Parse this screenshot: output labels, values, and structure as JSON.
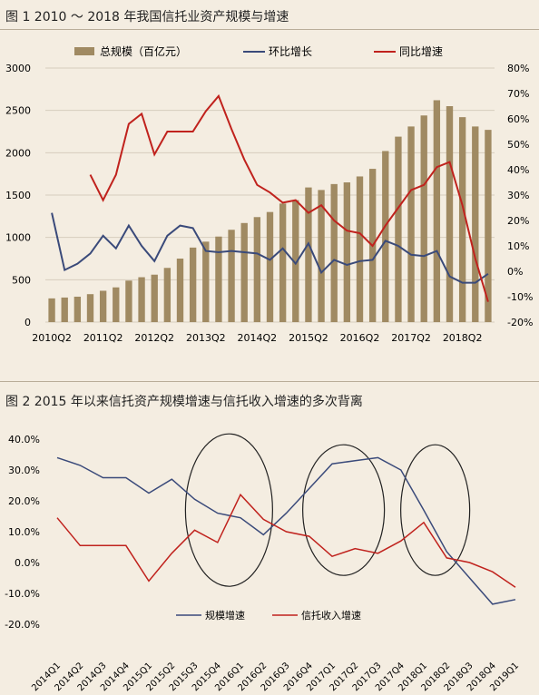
{
  "figure1": {
    "title": "图 1    2010 ～ 2018 年我国信托业资产规模与增速",
    "legend": {
      "bar": "总规模（百亿元）",
      "qoq": "环比增长",
      "yoy": "同比增速"
    },
    "left_ticks": [
      "0",
      "500",
      "1000",
      "1500",
      "2000",
      "2500",
      "3000"
    ],
    "right_ticks": [
      "-20%",
      "-10%",
      "0%",
      "10%",
      "20%",
      "30%",
      "40%",
      "50%",
      "60%",
      "70%",
      "80%"
    ],
    "x_labels": [
      "2010Q2",
      "2011Q2",
      "2012Q2",
      "2013Q2",
      "2014Q2",
      "2015Q2",
      "2016Q2",
      "2017Q2",
      "2018Q2"
    ]
  },
  "figure2": {
    "title": "图 2   2015 年以来信托资产规模增速与信托收入增速的多次背离",
    "y_ticks": [
      "-20.0%",
      "-10.0%",
      "0.0%",
      "10.0%",
      "20.0%",
      "30.0%",
      "40.0%"
    ],
    "legend": {
      "scale": "规模增速",
      "income": "信托收入增速"
    }
  },
  "chart_data": [
    {
      "type": "bar",
      "title": "图 1    2010 ～ 2018 年我国信托业资产规模与增速",
      "categories": [
        "2010Q2",
        "2010Q3",
        "2010Q4",
        "2011Q1",
        "2011Q2",
        "2011Q3",
        "2011Q4",
        "2012Q1",
        "2012Q2",
        "2012Q3",
        "2012Q4",
        "2013Q1",
        "2013Q2",
        "2013Q3",
        "2013Q4",
        "2014Q1",
        "2014Q2",
        "2014Q3",
        "2014Q4",
        "2015Q1",
        "2015Q2",
        "2015Q3",
        "2015Q4",
        "2016Q1",
        "2016Q2",
        "2016Q3",
        "2016Q4",
        "2017Q1",
        "2017Q2",
        "2017Q3",
        "2017Q4",
        "2018Q1",
        "2018Q2",
        "2018Q3",
        "2018Q4"
      ],
      "series": [
        {
          "name": "总规模（百亿元）",
          "axis": "left",
          "values": [
            280,
            290,
            300,
            330,
            370,
            410,
            490,
            530,
            560,
            640,
            750,
            880,
            950,
            1010,
            1090,
            1170,
            1240,
            1300,
            1400,
            1440,
            1590,
            1560,
            1630,
            1650,
            1720,
            1810,
            2020,
            2190,
            2310,
            2440,
            2620,
            2550,
            2420,
            2310,
            2270
          ]
        },
        {
          "name": "环比增长",
          "axis": "right",
          "values": [
            23,
            0.5,
            3,
            7,
            14,
            9,
            18,
            10,
            4,
            14,
            18,
            17,
            8,
            7.5,
            8,
            7.5,
            7,
            4.5,
            9,
            3,
            11,
            -0.5,
            4.5,
            2.5,
            4,
            4.5,
            12,
            10,
            6.5,
            6,
            8,
            -2,
            -4.5,
            -4.5,
            -1
          ]
        },
        {
          "name": "同比增速",
          "axis": "right",
          "values": [
            null,
            null,
            null,
            38,
            28,
            38,
            58,
            62,
            46,
            55,
            55,
            55,
            63,
            69,
            56,
            44,
            34,
            31,
            27,
            28,
            23,
            26,
            20,
            16,
            15,
            10,
            18,
            25,
            32,
            34,
            41,
            43,
            26,
            5,
            -12
          ]
        }
      ],
      "left_ylim": [
        0,
        3000
      ],
      "right_ylim": [
        -20,
        80
      ],
      "x_tick_labels": [
        "2010Q2",
        "2011Q2",
        "2012Q2",
        "2013Q2",
        "2014Q2",
        "2015Q2",
        "2016Q2",
        "2017Q2",
        "2018Q2"
      ],
      "legend_position": "top",
      "colors": {
        "bar": "#a08a62",
        "qoq": "#3a4a7a",
        "yoy": "#c0221d"
      }
    },
    {
      "type": "line",
      "title": "图 2   2015 年以来信托资产规模增速与信托收入增速的多次背离",
      "categories": [
        "2014Q1",
        "2014Q2",
        "2014Q3",
        "2014Q4",
        "2015Q1",
        "2015Q2",
        "2015Q3",
        "2015Q4",
        "2016Q1",
        "2016Q2",
        "2016Q3",
        "2016Q4",
        "2017Q1",
        "2017Q2",
        "2017Q3",
        "2017Q4",
        "2018Q1",
        "2018Q2",
        "2018Q3",
        "2018Q4",
        "2019Q1"
      ],
      "series": [
        {
          "name": "规模增速",
          "values": [
            34,
            31.5,
            27.5,
            27.5,
            22.5,
            27,
            20.5,
            16,
            14.5,
            9,
            16,
            24,
            32,
            33,
            34,
            30,
            17,
            3.5,
            -5,
            -13.5,
            -12
          ]
        },
        {
          "name": "信托收入增速",
          "values": [
            14.5,
            5.5,
            5.5,
            5.5,
            -6,
            3,
            10.5,
            6.5,
            22,
            14,
            10,
            8.5,
            2,
            4.5,
            3,
            7,
            13,
            1.5,
            0,
            -3,
            -8
          ]
        }
      ],
      "ylim": [
        -20,
        40
      ],
      "legend_position": "bottom-center",
      "colors": {
        "scale": "#3a4a7a",
        "income": "#c0221d"
      }
    }
  ]
}
